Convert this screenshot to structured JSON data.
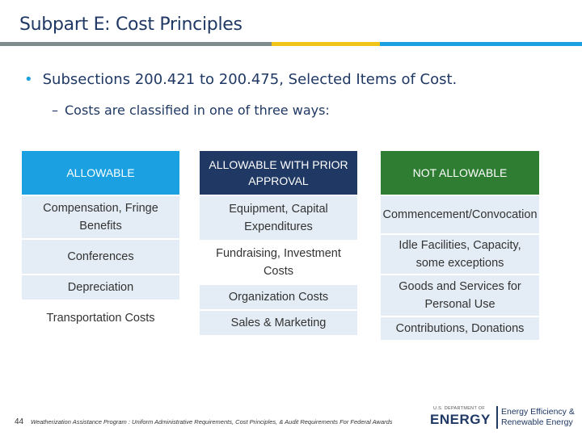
{
  "slide": {
    "title": "Subpart E: Cost Principles",
    "bullet_prefix": "Subsections ",
    "bullet_bold": "200.421 to 200.475",
    "bullet_suffix": ", Selected Items of Cost.",
    "sub_dash": "–",
    "sub_text": "Costs are classified in one of three ways:"
  },
  "table": {
    "columns": [
      {
        "header": "ALLOWABLE",
        "cells": [
          "Compensation, Fringe Benefits",
          "Conferences",
          "Depreciation",
          "Transportation Costs"
        ]
      },
      {
        "header": "ALLOWABLE WITH PRIOR APPROVAL",
        "cells": [
          "Equipment, Capital Expenditures",
          "Fundraising, Investment Costs",
          "Organization Costs",
          "Sales & Marketing"
        ]
      },
      {
        "header": "NOT ALLOWABLE",
        "cells": [
          "Commencement/Convocation",
          "Idle Facilities, Capacity, some exceptions",
          "Goods and Services for Personal Use",
          "Contributions, Donations"
        ]
      }
    ]
  },
  "footer": {
    "page_number": "44",
    "text": "Weatherization Assistance Program : Uniform Administrative Requirements, Cost Principles, & Audit Requirements For Federal Awards",
    "logo_small": "U.S. DEPARTMENT OF",
    "logo_main": "ENERGY",
    "logo_line1": "Energy Efficiency &",
    "logo_line2": "Renewable Energy"
  },
  "colors": {
    "accent_blue": "#1ba1e2",
    "navy": "#1f3864",
    "green": "#2e7d32",
    "cell_light": "#e4edf5"
  }
}
